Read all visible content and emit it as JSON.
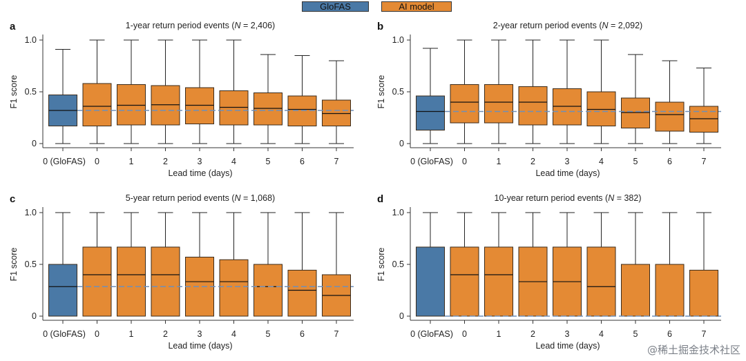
{
  "legend": {
    "glofas_label": "GloFAS",
    "ai_label": "AI model"
  },
  "colors": {
    "glofas": "#4a79a6",
    "ai": "#e48a34",
    "median_ref": "#6f8fb8",
    "stroke": "#3a2a1a"
  },
  "watermark": "@稀土掘金技术社区",
  "chart_data": [
    {
      "panel": "a",
      "type": "box",
      "title": "1-year return period events (N = 2,406)",
      "title_parts": [
        "1-year return period events (",
        "N",
        " = 2,406)"
      ],
      "xlabel": "Lead time (days)",
      "ylabel": "F1 score",
      "categories": [
        "0 (GloFAS)",
        "0",
        "1",
        "2",
        "3",
        "4",
        "5",
        "6",
        "7"
      ],
      "yticks": [
        "0",
        "0.5",
        "1.0"
      ],
      "ylim": [
        -0.04,
        1.03
      ],
      "reference_median": 0.32,
      "boxes": [
        {
          "min": 0,
          "q1": 0.17,
          "median": 0.32,
          "q3": 0.47,
          "max": 0.91
        },
        {
          "min": 0,
          "q1": 0.17,
          "median": 0.36,
          "q3": 0.58,
          "max": 1.0
        },
        {
          "min": 0,
          "q1": 0.18,
          "median": 0.37,
          "q3": 0.57,
          "max": 1.0
        },
        {
          "min": 0,
          "q1": 0.18,
          "median": 0.375,
          "q3": 0.56,
          "max": 1.0
        },
        {
          "min": 0,
          "q1": 0.19,
          "median": 0.37,
          "q3": 0.54,
          "max": 1.0
        },
        {
          "min": 0,
          "q1": 0.18,
          "median": 0.35,
          "q3": 0.51,
          "max": 1.0
        },
        {
          "min": 0,
          "q1": 0.18,
          "median": 0.34,
          "q3": 0.49,
          "max": 0.86
        },
        {
          "min": 0,
          "q1": 0.17,
          "median": 0.33,
          "q3": 0.46,
          "max": 0.85
        },
        {
          "min": 0,
          "q1": 0.17,
          "median": 0.29,
          "q3": 0.42,
          "max": 0.8
        }
      ]
    },
    {
      "panel": "b",
      "type": "box",
      "title": "2-year return period events (N = 2,092)",
      "title_parts": [
        "2-year return period events (",
        "N",
        " = 2,092)"
      ],
      "xlabel": "Lead time (days)",
      "ylabel": "F1 score",
      "categories": [
        "0 (GloFAS)",
        "0",
        "1",
        "2",
        "3",
        "4",
        "5",
        "6",
        "7"
      ],
      "yticks": [
        "0",
        "0.5",
        "1.0"
      ],
      "ylim": [
        -0.04,
        1.03
      ],
      "reference_median": 0.31,
      "boxes": [
        {
          "min": 0,
          "q1": 0.13,
          "median": 0.31,
          "q3": 0.46,
          "max": 0.92
        },
        {
          "min": 0,
          "q1": 0.2,
          "median": 0.4,
          "q3": 0.57,
          "max": 1.0
        },
        {
          "min": 0,
          "q1": 0.2,
          "median": 0.4,
          "q3": 0.57,
          "max": 1.0
        },
        {
          "min": 0,
          "q1": 0.18,
          "median": 0.4,
          "q3": 0.55,
          "max": 1.0
        },
        {
          "min": 0,
          "q1": 0.18,
          "median": 0.36,
          "q3": 0.53,
          "max": 1.0
        },
        {
          "min": 0,
          "q1": 0.17,
          "median": 0.33,
          "q3": 0.5,
          "max": 1.0
        },
        {
          "min": 0,
          "q1": 0.15,
          "median": 0.3,
          "q3": 0.44,
          "max": 0.86
        },
        {
          "min": 0,
          "q1": 0.12,
          "median": 0.28,
          "q3": 0.4,
          "max": 0.8
        },
        {
          "min": 0,
          "q1": 0.11,
          "median": 0.24,
          "q3": 0.36,
          "max": 0.73
        }
      ]
    },
    {
      "panel": "c",
      "type": "box",
      "title": "5-year return period events (N = 1,068)",
      "title_parts": [
        "5-year return period events (",
        "N",
        " = 1,068)"
      ],
      "xlabel": "Lead time (days)",
      "ylabel": "F1 score",
      "categories": [
        "0 (GloFAS)",
        "0",
        "1",
        "2",
        "3",
        "4",
        "5",
        "6",
        "7"
      ],
      "yticks": [
        "0",
        "0.5",
        "1.0"
      ],
      "ylim": [
        -0.04,
        1.03
      ],
      "reference_median": 0.285,
      "boxes": [
        {
          "min": 0,
          "q1": 0,
          "median": 0.285,
          "q3": 0.5,
          "max": 1.0
        },
        {
          "min": 0,
          "q1": 0,
          "median": 0.4,
          "q3": 0.667,
          "max": 1.0
        },
        {
          "min": 0,
          "q1": 0,
          "median": 0.4,
          "q3": 0.667,
          "max": 1.0
        },
        {
          "min": 0,
          "q1": 0,
          "median": 0.4,
          "q3": 0.667,
          "max": 1.0
        },
        {
          "min": 0,
          "q1": 0,
          "median": 0.333,
          "q3": 0.57,
          "max": 1.0
        },
        {
          "min": 0,
          "q1": 0,
          "median": 0.333,
          "q3": 0.545,
          "max": 1.0
        },
        {
          "min": 0,
          "q1": 0,
          "median": 0.285,
          "q3": 0.5,
          "max": 1.0
        },
        {
          "min": 0,
          "q1": 0,
          "median": 0.25,
          "q3": 0.444,
          "max": 1.0
        },
        {
          "min": 0,
          "q1": 0,
          "median": 0.2,
          "q3": 0.4,
          "max": 1.0
        }
      ]
    },
    {
      "panel": "d",
      "type": "box",
      "title": "10-year return period events (N = 382)",
      "title_parts": [
        "10-year return period events (",
        "N",
        " = 382)"
      ],
      "xlabel": "Lead time (days)",
      "ylabel": "F1 score",
      "categories": [
        "0 (GloFAS)",
        "0",
        "1",
        "2",
        "3",
        "4",
        "5",
        "6",
        "7"
      ],
      "yticks": [
        "0",
        "0.5",
        "1.0"
      ],
      "ylim": [
        -0.04,
        1.03
      ],
      "reference_median": 0.0,
      "boxes": [
        {
          "min": 0,
          "q1": 0,
          "median": 0.0,
          "q3": 0.667,
          "max": 1.0
        },
        {
          "min": 0,
          "q1": 0,
          "median": 0.4,
          "q3": 0.667,
          "max": 1.0
        },
        {
          "min": 0,
          "q1": 0,
          "median": 0.4,
          "q3": 0.667,
          "max": 1.0
        },
        {
          "min": 0,
          "q1": 0,
          "median": 0.333,
          "q3": 0.667,
          "max": 1.0
        },
        {
          "min": 0,
          "q1": 0,
          "median": 0.333,
          "q3": 0.667,
          "max": 1.0
        },
        {
          "min": 0,
          "q1": 0,
          "median": 0.285,
          "q3": 0.667,
          "max": 1.0
        },
        {
          "min": 0,
          "q1": 0,
          "median": 0.0,
          "q3": 0.5,
          "max": 1.0
        },
        {
          "min": 0,
          "q1": 0,
          "median": 0.0,
          "q3": 0.5,
          "max": 1.0
        },
        {
          "min": 0,
          "q1": 0,
          "median": 0.0,
          "q3": 0.444,
          "max": 1.0
        }
      ]
    }
  ]
}
